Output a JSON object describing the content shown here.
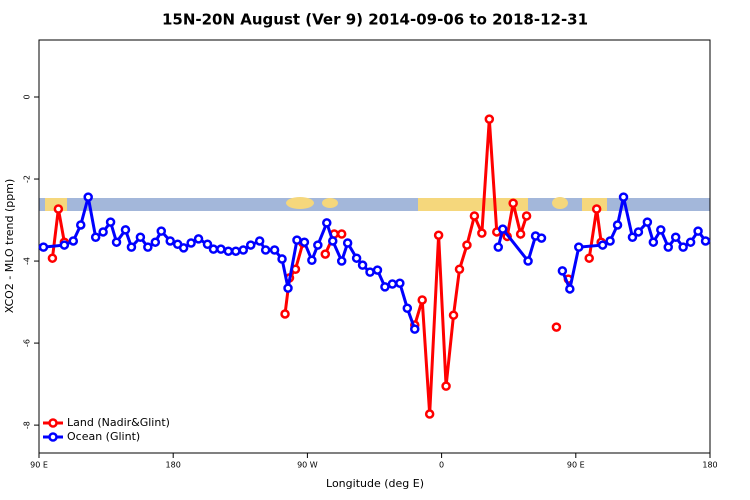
{
  "chart_data": {
    "type": "line",
    "title": "15N-20N August (Ver 9)   2014-09-06 to 2018-12-31",
    "x_label": "Longitude (deg E)",
    "y_label": "XCO2 - MLO trend (ppm)",
    "xlim": [
      90,
      540
    ],
    "ylim": [
      -8.68,
      1.39
    ],
    "xticks": [
      {
        "value": 90,
        "label": "90 E"
      },
      180,
      {
        "value": 270,
        "label": "90 W"
      },
      {
        "value": 360,
        "label": "0"
      },
      {
        "value": 450,
        "label": "90 E"
      },
      {
        "value": 540,
        "label": "180"
      }
    ],
    "yticks": [
      0,
      -2,
      -4,
      -6,
      -8
    ],
    "legend": "bottom-left",
    "series": [
      {
        "name": "Land (Nadir&Glint)",
        "color": "#ff0000",
        "x": [
          99,
          103,
          107,
          null,
          255,
          258,
          262,
          267,
          null,
          282,
          288,
          293,
          null,
          342,
          347,
          352,
          358,
          363,
          368,
          372,
          377,
          382,
          387,
          392,
          397,
          404,
          408,
          413,
          417,
          null,
          437,
          null,
          445,
          null,
          459,
          464,
          467
        ],
        "values": [
          -3.93,
          -2.73,
          -3.54,
          null,
          -5.29,
          -4.41,
          -4.2,
          -3.56,
          null,
          -3.83,
          -3.34,
          -3.34,
          null,
          -5.56,
          -4.95,
          -7.73,
          -3.37,
          -7.05,
          -5.32,
          -4.2,
          -3.61,
          -2.9,
          -3.32,
          -0.54,
          -3.29,
          -3.4,
          -2.59,
          -3.34,
          -2.9,
          null,
          -5.61,
          null,
          -4.44,
          null,
          -3.93,
          -2.73,
          -3.54
        ]
      },
      {
        "name": "Ocean (Glint)",
        "color": "#0000ff",
        "x": [
          93,
          107,
          113,
          118,
          123,
          128,
          133,
          138,
          142,
          148,
          152,
          158,
          163,
          168,
          172,
          178,
          183,
          187,
          192,
          197,
          203,
          207,
          212,
          217,
          222,
          227,
          232,
          238,
          242,
          248,
          253,
          257,
          263,
          268,
          273,
          277,
          283,
          287,
          293,
          297,
          303,
          307,
          312,
          317,
          322,
          327,
          332,
          337,
          342,
          null,
          398,
          401,
          418,
          423,
          427,
          null,
          441,
          446,
          452,
          468,
          473,
          478,
          482,
          488,
          492,
          498,
          502,
          507,
          512,
          517,
          522,
          527,
          532,
          537
        ],
        "values": [
          -3.66,
          -3.61,
          -3.51,
          -3.12,
          -2.44,
          -3.42,
          -3.29,
          -3.05,
          -3.54,
          -3.24,
          -3.66,
          -3.42,
          -3.66,
          -3.54,
          -3.27,
          -3.51,
          -3.59,
          -3.68,
          -3.56,
          -3.46,
          -3.59,
          -3.71,
          -3.71,
          -3.76,
          -3.76,
          -3.73,
          -3.61,
          -3.51,
          -3.73,
          -3.73,
          -3.95,
          -4.66,
          -3.49,
          -3.54,
          -3.98,
          -3.61,
          -3.07,
          -3.51,
          -4.0,
          -3.56,
          -3.93,
          -4.1,
          -4.27,
          -4.22,
          -4.63,
          -4.56,
          -4.54,
          -5.15,
          -5.66,
          null,
          -3.66,
          -3.22,
          -4.0,
          -3.39,
          -3.44,
          null,
          -4.24,
          -4.68,
          -3.66,
          -3.61,
          -3.51,
          -3.12,
          -2.44,
          -3.42,
          -3.29,
          -3.05,
          -3.54,
          -3.24,
          -3.66,
          -3.42,
          -3.66,
          -3.54,
          -3.27,
          -3.51
        ]
      }
    ]
  }
}
